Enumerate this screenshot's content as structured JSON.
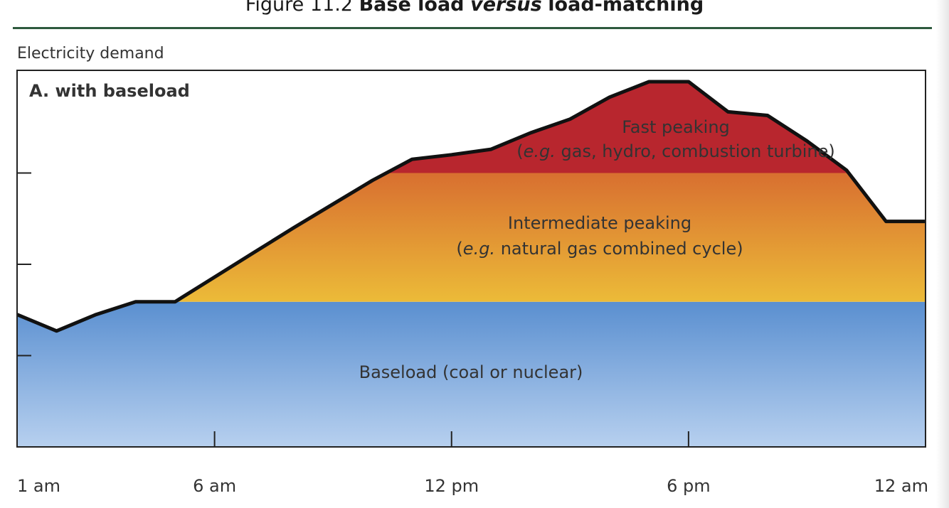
{
  "figure": {
    "title_number": "Figure 11.2",
    "title_part1": "Base load",
    "title_part2": "versus",
    "title_part3": "load-matching"
  },
  "chart_data": {
    "type": "area",
    "title": "A. with baseload",
    "ylabel": "Electricity demand",
    "xlabel": "",
    "x_tick_labels": [
      "1 am",
      "6 am",
      "12 pm",
      "6 pm",
      "12 am"
    ],
    "x_tick_hours": [
      1,
      6,
      12,
      18,
      24
    ],
    "xlim": [
      1,
      24
    ],
    "ylim": [
      0,
      4
    ],
    "y_ticks": [
      1,
      2,
      3
    ],
    "y_tick_labels_shown": false,
    "grid": false,
    "demand_curve": {
      "hour": [
        1,
        2,
        3,
        4,
        5,
        6,
        7,
        8,
        9,
        10,
        11,
        12,
        13,
        14,
        15,
        16,
        17,
        18,
        19,
        20,
        21,
        22,
        23,
        24
      ],
      "demand": [
        1.45,
        1.27,
        1.45,
        1.59,
        1.59,
        1.86,
        2.13,
        2.4,
        2.66,
        2.92,
        3.15,
        3.2,
        3.26,
        3.44,
        3.59,
        3.83,
        4.0,
        4.0,
        3.67,
        3.63,
        3.35,
        3.03,
        2.47,
        2.47
      ],
      "line_color": "#111111"
    },
    "layers": [
      {
        "name": "Baseload (coal or nuclear)",
        "level_upper": 1.59,
        "color_top": "#5a8fd0",
        "color_bottom": "#b7d0ef"
      },
      {
        "name_line1": "Intermediate peaking",
        "name_line2_italic": "e.g.",
        "name_line2_rest": " natural gas combined cycle)",
        "level_upper": 3.0,
        "color_top": "#d86f30",
        "color_bottom": "#f0cc3a"
      },
      {
        "name_line1": "Fast peaking",
        "name_line2_italic": "e.g.",
        "name_line2_rest": " gas, hydro, combustion turbine)",
        "level_upper": "demand",
        "color": "#b8262e"
      }
    ]
  }
}
